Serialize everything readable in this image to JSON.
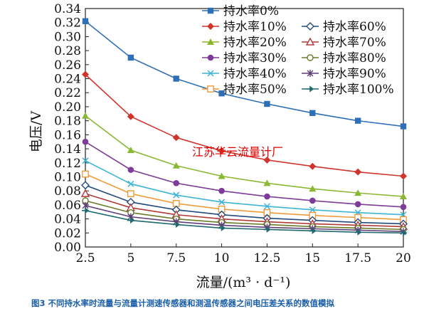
{
  "caption": "图3 不同持水率时流量与流量计测速传感器和测温传感器之间电压差关系的数值模拟",
  "watermark": "江苏华云流量计厂",
  "chart_data": {
    "type": "line",
    "xlabel": "流量/(m³ · d⁻¹)",
    "ylabel": "电压/V",
    "x": [
      2.5,
      5,
      7.5,
      10,
      12.5,
      15,
      17.5,
      20
    ],
    "x_ticks": [
      "2.5",
      "5",
      "7.5",
      "10",
      "12.5",
      "15",
      "17.5",
      "20"
    ],
    "xlim": [
      2.5,
      20
    ],
    "ylim": [
      0,
      0.34
    ],
    "y_ticks": [
      "0.00",
      "0.02",
      "0.04",
      "0.06",
      "0.08",
      "0.10",
      "0.12",
      "0.14",
      "0.16",
      "0.18",
      "0.20",
      "0.22",
      "0.24",
      "0.26",
      "0.28",
      "0.30",
      "0.32",
      "0.34"
    ],
    "grid": false,
    "legend_position": "top-right",
    "series": [
      {
        "name": "持水率0%",
        "color": "#2e6fb7",
        "marker": "square-filled",
        "values": [
          0.322,
          0.27,
          0.24,
          0.219,
          0.204,
          0.191,
          0.18,
          0.172
        ]
      },
      {
        "name": "持水率10%",
        "color": "#d0342c",
        "marker": "diamond-filled",
        "values": [
          0.246,
          0.186,
          0.156,
          0.137,
          0.124,
          0.115,
          0.107,
          0.101
        ]
      },
      {
        "name": "持水率20%",
        "color": "#8ab833",
        "marker": "triangle-filled",
        "values": [
          0.187,
          0.138,
          0.116,
          0.101,
          0.091,
          0.083,
          0.077,
          0.072
        ]
      },
      {
        "name": "持水率30%",
        "color": "#7d3c98",
        "marker": "circle-filled",
        "values": [
          0.15,
          0.11,
          0.091,
          0.08,
          0.072,
          0.066,
          0.061,
          0.057
        ]
      },
      {
        "name": "持水率40%",
        "color": "#3fb4d4",
        "marker": "x",
        "values": [
          0.123,
          0.09,
          0.074,
          0.064,
          0.058,
          0.053,
          0.049,
          0.046
        ]
      },
      {
        "name": "持水率50%",
        "color": "#f09a3a",
        "marker": "square-open",
        "values": [
          0.104,
          0.076,
          0.062,
          0.054,
          0.049,
          0.045,
          0.042,
          0.039
        ]
      },
      {
        "name": "持水率60%",
        "color": "#244a7c",
        "marker": "diamond-open",
        "values": [
          0.088,
          0.064,
          0.053,
          0.046,
          0.041,
          0.038,
          0.035,
          0.033
        ]
      },
      {
        "name": "持水率70%",
        "color": "#b03a3a",
        "marker": "triangle-open",
        "values": [
          0.076,
          0.056,
          0.046,
          0.04,
          0.036,
          0.033,
          0.031,
          0.029
        ]
      },
      {
        "name": "持水率80%",
        "color": "#6b7b2a",
        "marker": "circle-open",
        "values": [
          0.066,
          0.049,
          0.04,
          0.035,
          0.032,
          0.029,
          0.027,
          0.025
        ]
      },
      {
        "name": "持水率90%",
        "color": "#5e3f7a",
        "marker": "asterisk",
        "values": [
          0.059,
          0.043,
          0.036,
          0.031,
          0.028,
          0.026,
          0.024,
          0.022
        ]
      },
      {
        "name": "持水率100%",
        "color": "#1f6a70",
        "marker": "arrow",
        "values": [
          0.052,
          0.038,
          0.032,
          0.027,
          0.025,
          0.023,
          0.021,
          0.02
        ]
      }
    ]
  }
}
